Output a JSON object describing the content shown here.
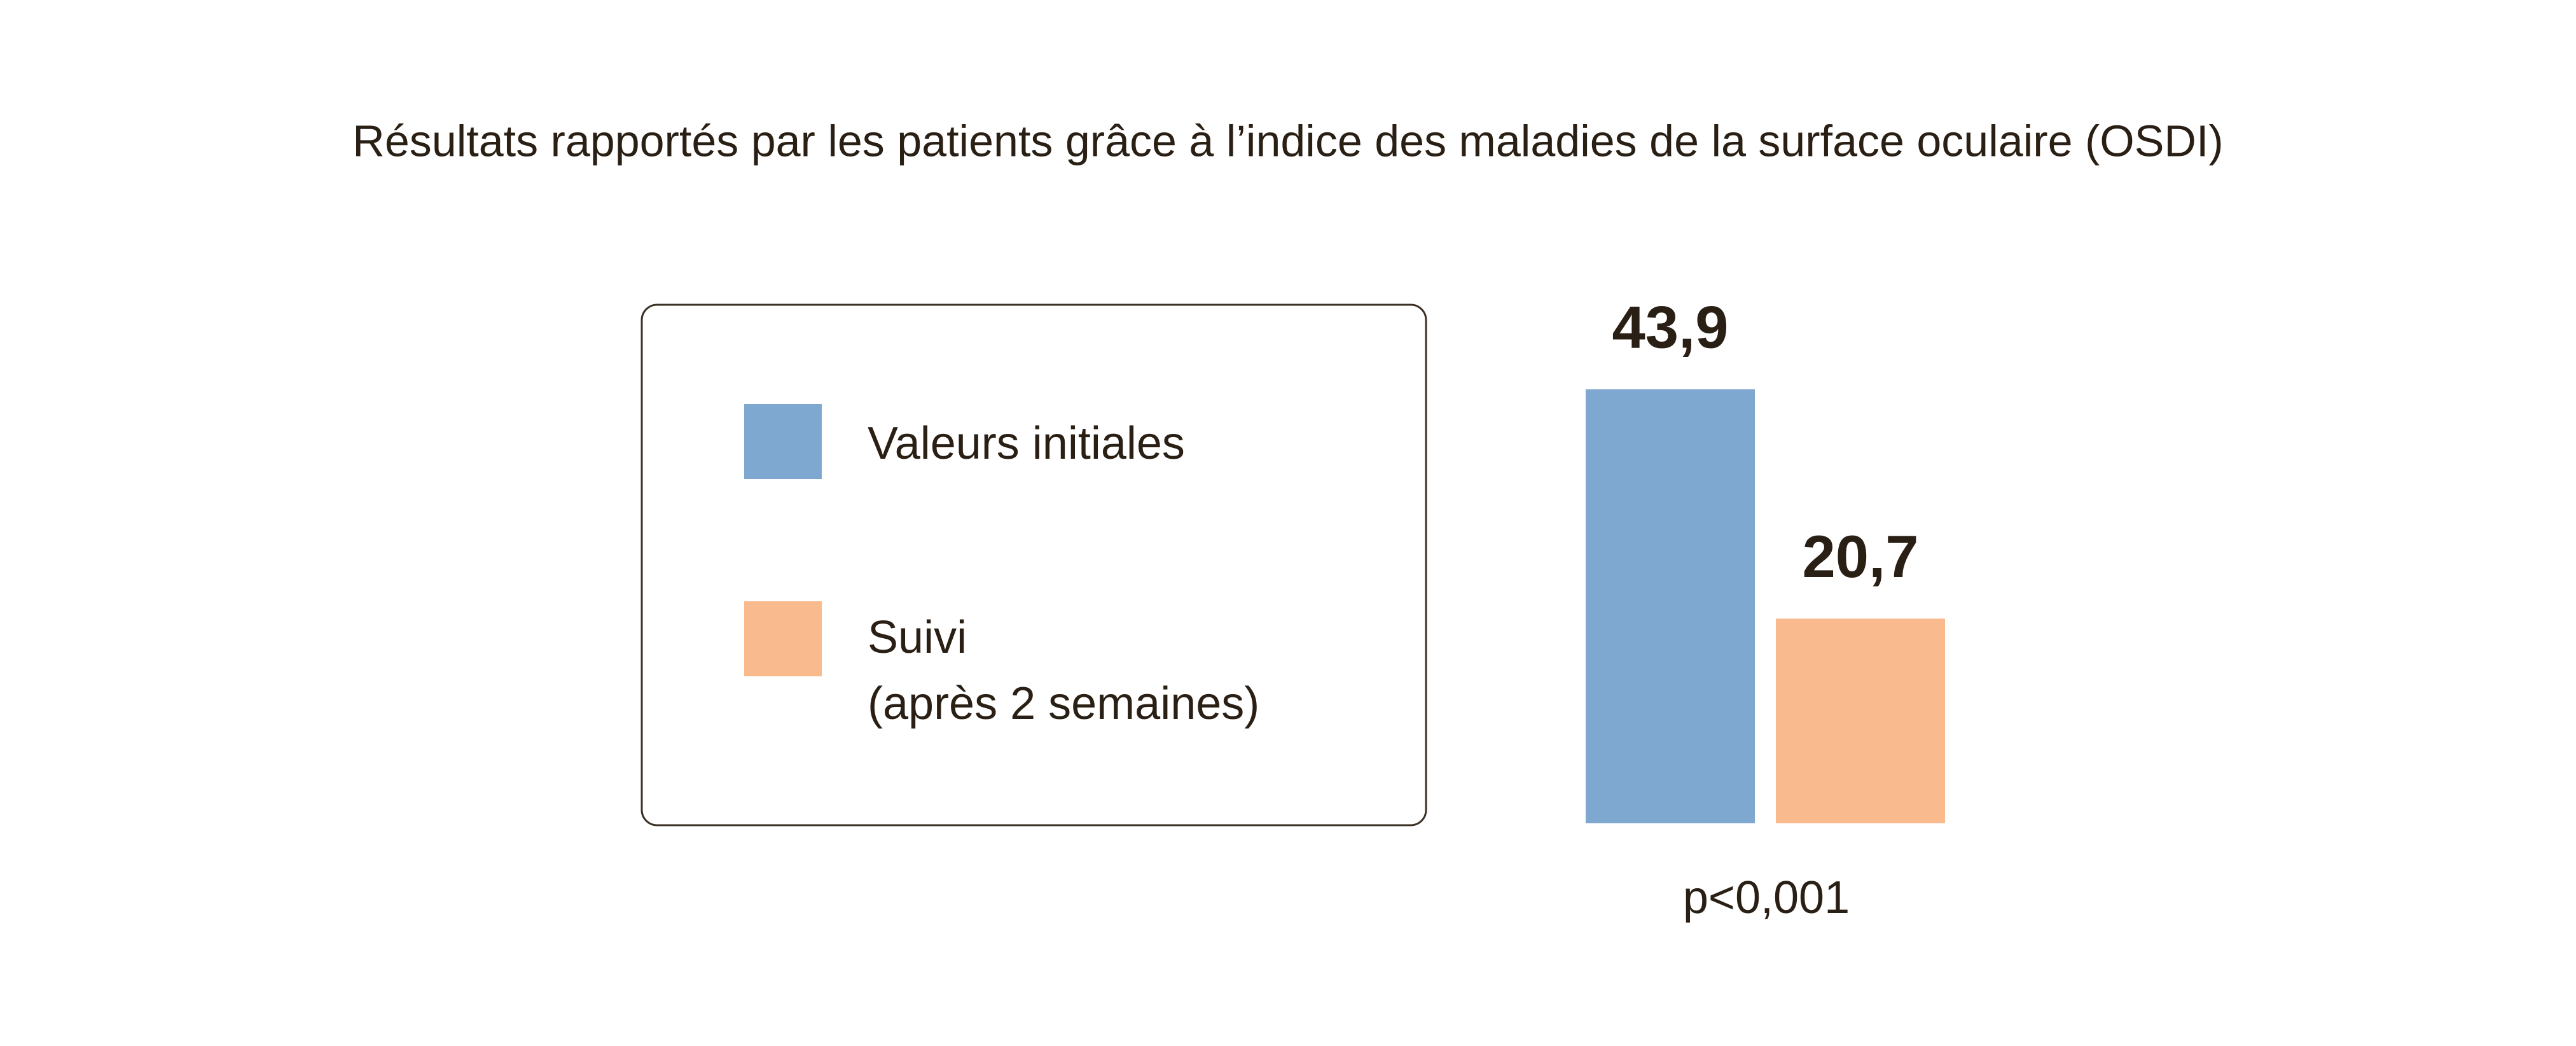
{
  "chart_data": {
    "type": "bar",
    "title": "Résultats rapportés par les patients grâce à l’indice des maladies de la surface oculaire (OSDI)",
    "series": [
      {
        "name": "Valeurs initiales",
        "color": "#7fa8d1",
        "values": [
          43.9
        ],
        "value_labels": [
          "43,9"
        ]
      },
      {
        "name": "Suivi\n(après 2 semaines)",
        "color": "#f9bb8e",
        "values": [
          20.7
        ],
        "value_labels": [
          "20,7"
        ]
      }
    ],
    "annotation": "p<0,001"
  }
}
